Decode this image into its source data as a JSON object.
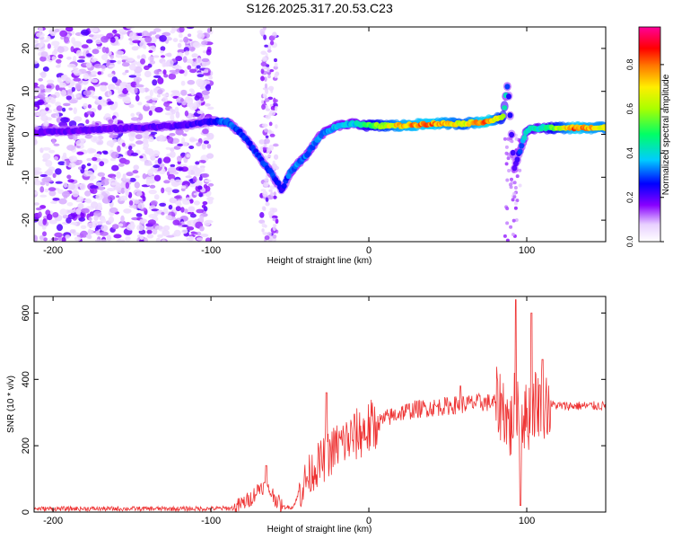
{
  "figure_title": "S126.2025.317.20.53.C23",
  "colors": {
    "snr_line": "#ee3333",
    "axis": "#000000",
    "background": "#ffffff"
  },
  "chart_data": [
    {
      "type": "heatmap",
      "title": "S126.2025.317.20.53.C23",
      "xlabel": "Height of straight line (km)",
      "ylabel": "Frequency (Hz)",
      "xlim": [
        -212,
        150
      ],
      "ylim": [
        -25,
        25
      ],
      "xticks": [
        -200,
        -100,
        0,
        100
      ],
      "yticks": [
        -20,
        -10,
        0,
        10,
        20
      ],
      "colorbar": {
        "label": "Normalized spectral amplitude",
        "range": [
          0,
          0.97
        ],
        "ticks": [
          "0.0",
          "0.2",
          "0.4",
          "0.6",
          "0.8"
        ],
        "tick_values": [
          0,
          0.2,
          0.4,
          0.6,
          0.8
        ],
        "colormap": "hsv-reversed (purple-blue-cyan-green-yellow-red-magenta)"
      },
      "ridge": [
        {
          "x": -212,
          "f": 0.5,
          "a": 0.2
        },
        {
          "x": -180,
          "f": 1.0,
          "a": 0.2
        },
        {
          "x": -150,
          "f": 1.5,
          "a": 0.2
        },
        {
          "x": -120,
          "f": 2.0,
          "a": 0.22
        },
        {
          "x": -100,
          "f": 3.0,
          "a": 0.25
        },
        {
          "x": -90,
          "f": 3.0,
          "a": 0.35
        },
        {
          "x": -80,
          "f": 0.0,
          "a": 0.3
        },
        {
          "x": -70,
          "f": -5.0,
          "a": 0.3
        },
        {
          "x": -60,
          "f": -10.0,
          "a": 0.3
        },
        {
          "x": -55,
          "f": -13.0,
          "a": 0.25
        },
        {
          "x": -50,
          "f": -9.0,
          "a": 0.35
        },
        {
          "x": -40,
          "f": -5.0,
          "a": 0.35
        },
        {
          "x": -30,
          "f": 0.0,
          "a": 0.35
        },
        {
          "x": -20,
          "f": 2.0,
          "a": 0.4
        },
        {
          "x": -10,
          "f": 2.5,
          "a": 0.4
        },
        {
          "x": 0,
          "f": 2.0,
          "a": 0.55
        },
        {
          "x": 20,
          "f": 2.0,
          "a": 0.8
        },
        {
          "x": 40,
          "f": 2.5,
          "a": 0.85
        },
        {
          "x": 60,
          "f": 2.5,
          "a": 0.7
        },
        {
          "x": 75,
          "f": 3.0,
          "a": 0.9
        },
        {
          "x": 85,
          "f": 4.0,
          "a": 0.6
        },
        {
          "x": 88,
          "f": 12.0,
          "a": 0.3
        },
        {
          "x": 92,
          "f": -8.0,
          "a": 0.2
        },
        {
          "x": 100,
          "f": 1.0,
          "a": 0.45
        },
        {
          "x": 110,
          "f": 1.5,
          "a": 0.45
        },
        {
          "x": 130,
          "f": 1.5,
          "a": 0.85
        },
        {
          "x": 150,
          "f": 1.5,
          "a": 0.75
        }
      ]
    },
    {
      "type": "line",
      "xlabel": "Height of straight line (km)",
      "ylabel": "SNR (10 * v/v)",
      "xlim": [
        -212,
        150
      ],
      "ylim": [
        0,
        650
      ],
      "xticks": [
        -200,
        -100,
        0,
        100
      ],
      "yticks": [
        0,
        200,
        400,
        600
      ],
      "series": [
        {
          "name": "SNR",
          "x": [
            -212,
            -150,
            -100,
            -85,
            -75,
            -68,
            -62,
            -55,
            -48,
            -42,
            -35,
            -28,
            -20,
            -12,
            -5,
            0,
            10,
            20,
            30,
            40,
            50,
            60,
            70,
            80,
            85,
            90,
            93,
            96,
            100,
            105,
            110,
            120,
            130,
            140,
            150
          ],
          "values": [
            10,
            10,
            10,
            12,
            40,
            80,
            60,
            15,
            15,
            80,
            130,
            160,
            200,
            220,
            240,
            250,
            280,
            300,
            310,
            315,
            320,
            325,
            330,
            330,
            320,
            250,
            350,
            300,
            280,
            330,
            330,
            320,
            320,
            320,
            320
          ],
          "spikes": [
            {
              "x": -65,
              "v": 140
            },
            {
              "x": -27,
              "v": 360
            },
            {
              "x": 58,
              "v": 380
            },
            {
              "x": 93,
              "v": 640
            },
            {
              "x": 96,
              "v": 20
            },
            {
              "x": 103,
              "v": 600
            },
            {
              "x": 110,
              "v": 460
            }
          ]
        }
      ]
    }
  ]
}
